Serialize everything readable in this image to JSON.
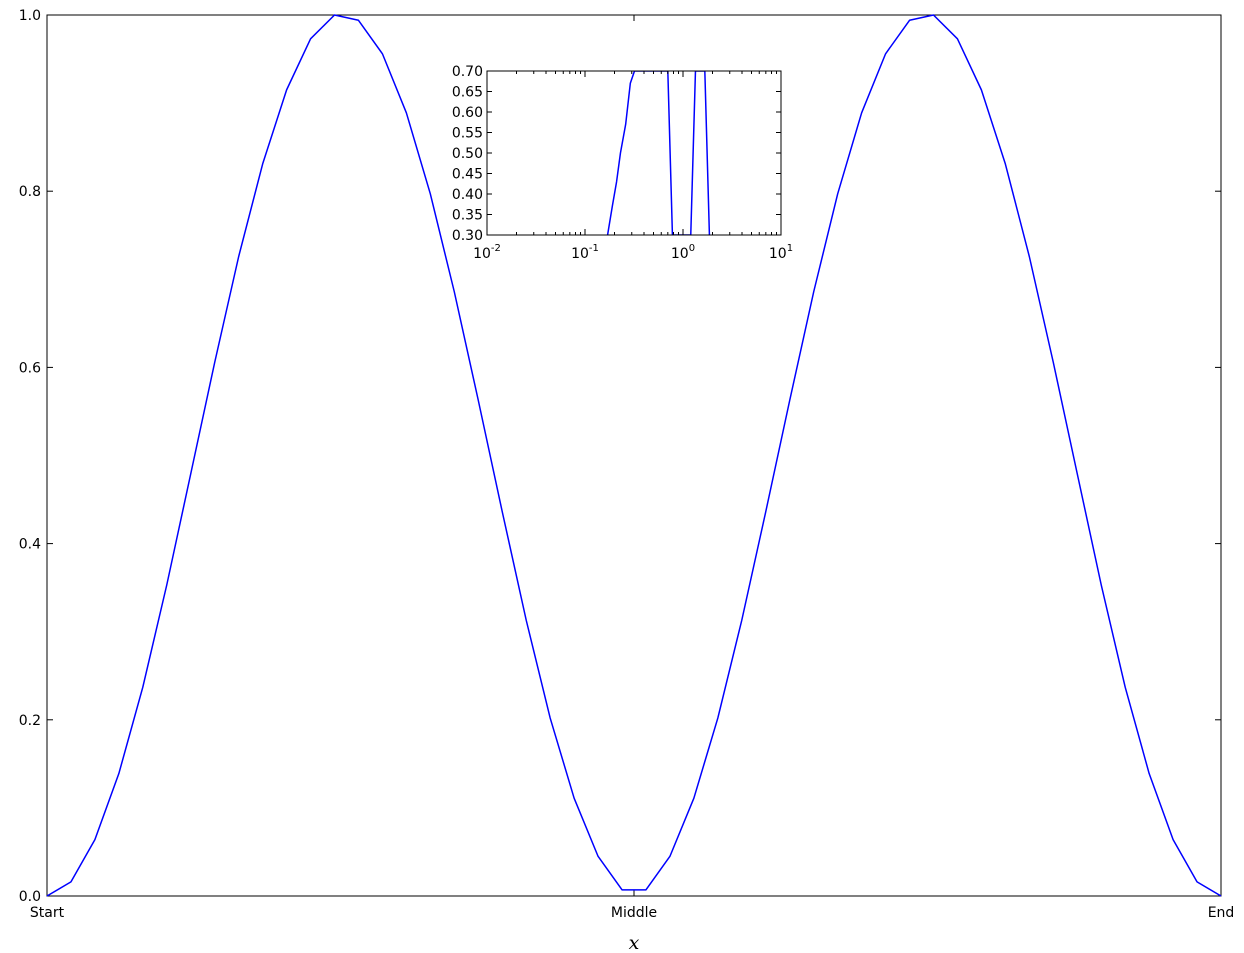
{
  "chart_data": [
    {
      "type": "line",
      "xlabel": "x",
      "ylabel": "",
      "title": "",
      "xlim": [
        0,
        1
      ],
      "ylim": [
        0,
        1
      ],
      "x_ticks": [
        {
          "value": 0,
          "label": "Start"
        },
        {
          "value": 0.5,
          "label": "Middle"
        },
        {
          "value": 1,
          "label": "End"
        }
      ],
      "y_ticks": [
        {
          "value": 0,
          "label": "0.0"
        },
        {
          "value": 0.2,
          "label": "0.2"
        },
        {
          "value": 0.4,
          "label": "0.4"
        },
        {
          "value": 0.6,
          "label": "0.6"
        },
        {
          "value": 0.8,
          "label": "0.8"
        },
        {
          "value": 1,
          "label": "1.0"
        }
      ],
      "grid": false,
      "series": [
        {
          "color": "#0000ff",
          "x": [
            0.0,
            0.0204,
            0.0408,
            0.0612,
            0.0816,
            0.102,
            0.1224,
            0.1429,
            0.1633,
            0.1837,
            0.2041,
            0.2245,
            0.2449,
            0.2653,
            0.2857,
            0.3061,
            0.3265,
            0.3469,
            0.3673,
            0.3878,
            0.4082,
            0.4286,
            0.449,
            0.4694,
            0.4898,
            0.5102,
            0.5306,
            0.551,
            0.5714,
            0.5918,
            0.6122,
            0.6327,
            0.6531,
            0.6735,
            0.6939,
            0.7143,
            0.7347,
            0.7551,
            0.7755,
            0.7959,
            0.8163,
            0.8367,
            0.8571,
            0.8776,
            0.898,
            0.9184,
            0.9388,
            0.9592,
            0.9796,
            1.0
          ],
          "y": [
            0.0,
            0.016,
            0.064,
            0.139,
            0.237,
            0.353,
            0.479,
            0.606,
            0.726,
            0.831,
            0.915,
            0.973,
            1.0,
            0.994,
            0.956,
            0.889,
            0.797,
            0.686,
            0.563,
            0.436,
            0.313,
            0.202,
            0.111,
            0.045,
            0.007,
            0.007,
            0.045,
            0.111,
            0.202,
            0.313,
            0.436,
            0.563,
            0.686,
            0.797,
            0.889,
            0.956,
            0.994,
            1.0,
            0.973,
            0.915,
            0.831,
            0.726,
            0.606,
            0.479,
            0.353,
            0.237,
            0.139,
            0.064,
            0.016,
            0.0
          ]
        }
      ]
    },
    {
      "type": "line",
      "title": "",
      "xlabel": "",
      "ylabel": "",
      "xscale": "log",
      "xlim": [
        0.01,
        10
      ],
      "ylim": [
        0.3,
        0.7
      ],
      "x_ticks": [
        {
          "value": 0.01,
          "base": "10",
          "exp": "-2"
        },
        {
          "value": 0.1,
          "base": "10",
          "exp": "-1"
        },
        {
          "value": 1,
          "base": "10",
          "exp": "0"
        },
        {
          "value": 10,
          "base": "10",
          "exp": "1"
        }
      ],
      "y_ticks": [
        {
          "value": 0.3,
          "label": "0.30"
        },
        {
          "value": 0.35,
          "label": "0.35"
        },
        {
          "value": 0.4,
          "label": "0.40"
        },
        {
          "value": 0.45,
          "label": "0.45"
        },
        {
          "value": 0.5,
          "label": "0.50"
        },
        {
          "value": 0.55,
          "label": "0.55"
        },
        {
          "value": 0.6,
          "label": "0.60"
        },
        {
          "value": 0.65,
          "label": "0.65"
        },
        {
          "value": 0.7,
          "label": "0.70"
        }
      ],
      "grid": false,
      "series": [
        {
          "color": "#0000ff",
          "x": [
            0.17,
            0.19,
            0.21,
            0.23,
            0.26,
            0.29,
            0.32,
            0.36,
            0.4,
            0.45,
            0.5,
            0.56,
            0.63,
            0.7,
            0.78,
            0.87,
            0.97,
            1.08,
            1.2,
            1.34,
            1.5,
            1.67,
            1.86
          ],
          "y": [
            0.3,
            0.37,
            0.43,
            0.5,
            0.57,
            0.67,
            0.7,
            0.7,
            0.7,
            0.7,
            0.7,
            0.7,
            0.7,
            0.7,
            0.3,
            0.3,
            0.3,
            0.3,
            0.3,
            0.7,
            0.7,
            0.7,
            0.3
          ]
        }
      ]
    }
  ]
}
